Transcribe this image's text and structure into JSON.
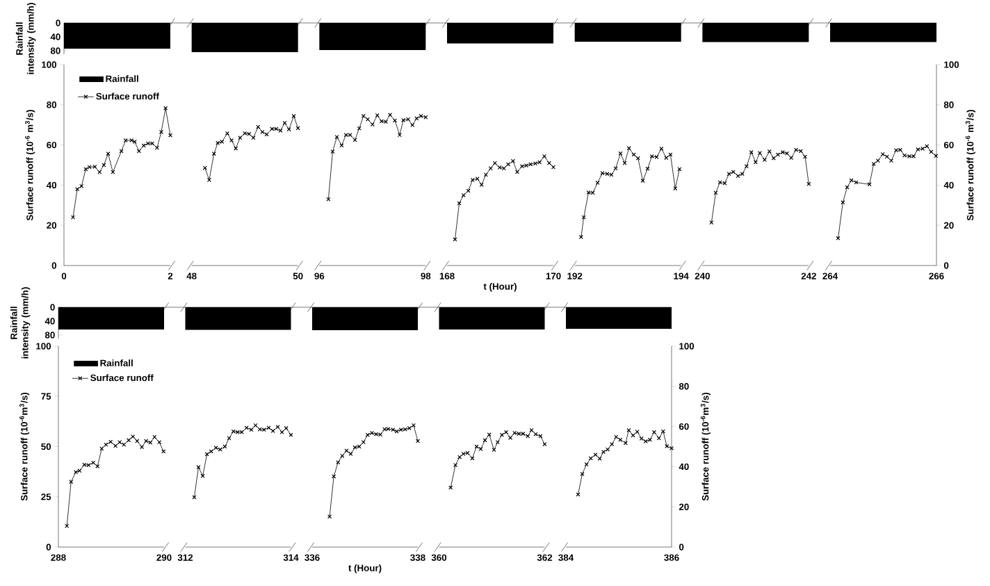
{
  "chart_data": [
    {
      "type": "bar",
      "categories": [
        null,
        null,
        null,
        null,
        null,
        null,
        null
      ],
      "series": [
        {
          "name": "Rainfall",
          "color": "#000000",
          "values": [
            74,
            84,
            78,
            59,
            54,
            55,
            55
          ]
        }
      ],
      "ylim": [
        90,
        0
      ],
      "yticks": [
        0,
        40,
        80
      ],
      "ylabel": "Rainfall intensity (mm/h)",
      "tick_labels": "y",
      "legend": "bottom"
    },
    {
      "type": "line",
      "x": [
        0.17,
        0.25,
        0.33,
        0.41,
        0.48,
        0.58,
        0.67,
        0.75,
        0.83,
        0.92,
        1.08,
        1.16,
        1.27,
        1.33,
        1.41,
        1.5,
        1.58,
        1.66,
        1.75,
        1.83,
        1.91,
        2.0
      ],
      "series": [
        {
          "name": "Surface runoff",
          "color": "#000000",
          "values": [
            24,
            38,
            39.5,
            48,
            49,
            49.2,
            46.5,
            50,
            55.7,
            46.5,
            57,
            62.3,
            62.3,
            61.6,
            57,
            59.7,
            60.8,
            60.8,
            58.6,
            66.5,
            78.3,
            64.8
          ]
        }
      ],
      "xlim": [
        0,
        2
      ],
      "xticks": [
        0,
        2
      ],
      "ylim": [
        0,
        100
      ],
      "yticks": [
        0,
        20,
        40,
        60,
        80,
        100
      ],
      "ylabel": "Surface runoff (10$^{-6}$ m$^{3}$/s)",
      "marker": "cross",
      "legend": "top left"
    },
    {
      "type": "line",
      "x": [
        48.25,
        48.33,
        48.42,
        48.49,
        48.57,
        48.67,
        48.75,
        48.83,
        48.91,
        49.0,
        49.08,
        49.16,
        49.25,
        49.33,
        49.41,
        49.51,
        49.59,
        49.67,
        49.75,
        49.83,
        49.92,
        50.0
      ],
      "series": [
        {
          "color": "#000000",
          "values": [
            48.6,
            42.6,
            55.7,
            61,
            61.6,
            65.8,
            62.3,
            58.3,
            63.6,
            65.8,
            65.5,
            63.6,
            69,
            66.5,
            65.3,
            68,
            68,
            67.2,
            71,
            67.8,
            74.4,
            68.4
          ]
        }
      ],
      "xlim": [
        48,
        50
      ],
      "xticks": [
        48,
        50
      ],
      "ylim": [
        0,
        100
      ],
      "tick_labels": "x",
      "marker": "cross"
    },
    {
      "type": "line",
      "x": [
        96.17,
        96.25,
        96.33,
        96.42,
        96.5,
        96.58,
        96.67,
        96.75,
        96.83,
        96.91,
        97.0,
        97.09,
        97.17,
        97.25,
        97.33,
        97.42,
        97.51,
        97.58,
        97.67,
        97.75,
        97.83,
        97.91,
        98.0
      ],
      "series": [
        {
          "color": "#000000",
          "values": [
            33,
            56.7,
            64,
            59.8,
            65,
            65,
            62.5,
            68.3,
            74.4,
            72.8,
            70.2,
            74.8,
            71.8,
            71.6,
            75,
            72.2,
            65,
            72.4,
            72.8,
            69.9,
            73.2,
            74.4,
            73.8
          ]
        }
      ],
      "xlim": [
        96,
        98
      ],
      "xticks": [
        96,
        98
      ],
      "ylim": [
        0,
        100
      ],
      "tick_labels": "x",
      "marker": "cross"
    },
    {
      "type": "line",
      "x": [
        168.15,
        168.23,
        168.31,
        168.4,
        168.48,
        168.57,
        168.65,
        168.73,
        168.82,
        168.9,
        168.99,
        169.07,
        169.15,
        169.24,
        169.32,
        169.41,
        169.49,
        169.57,
        169.66,
        169.74,
        169.83,
        169.92,
        170.0
      ],
      "series": [
        {
          "color": "#000000",
          "values": [
            13,
            31,
            35,
            37.2,
            42.6,
            43.2,
            40.2,
            45.2,
            48.4,
            51,
            48.8,
            48.4,
            50.4,
            52,
            46.6,
            49.4,
            49.8,
            50.4,
            50.8,
            51.4,
            54.4,
            51,
            49
          ]
        }
      ],
      "xlim": [
        168,
        170
      ],
      "xticks": [
        168,
        170
      ],
      "ylim": [
        0,
        100
      ],
      "tick_labels": "x",
      "xlabel": "t (Hour)",
      "marker": "cross"
    },
    {
      "type": "line",
      "x": [
        192.12,
        192.17,
        192.26,
        192.34,
        192.43,
        192.52,
        192.61,
        192.69,
        192.77,
        192.86,
        192.94,
        193.02,
        193.11,
        193.19,
        193.28,
        193.37,
        193.45,
        193.54,
        193.63,
        193.72,
        193.8,
        193.89,
        193.97
      ],
      "series": [
        {
          "color": "#000000",
          "values": [
            14.2,
            24,
            36.4,
            36.2,
            41.2,
            46,
            45.6,
            45.2,
            48.4,
            55.8,
            51,
            58.4,
            55.2,
            53.4,
            42.2,
            48.2,
            54.4,
            54,
            58.2,
            53.6,
            55.2,
            38.4,
            48
          ]
        }
      ],
      "xlim": [
        192,
        194
      ],
      "xticks": [
        192,
        194
      ],
      "ylim": [
        0,
        100
      ],
      "tick_labels": "x",
      "marker": "cross"
    },
    {
      "type": "line",
      "x": [
        240.17,
        240.25,
        240.33,
        240.42,
        240.5,
        240.58,
        240.67,
        240.75,
        240.83,
        240.92,
        241.0,
        241.08,
        241.17,
        241.26,
        241.34,
        241.42,
        241.51,
        241.59,
        241.67,
        241.76,
        241.85,
        241.93,
        242.0
      ],
      "series": [
        {
          "color": "#000000",
          "values": [
            21.4,
            36.2,
            41.4,
            41,
            45.6,
            46.6,
            44.6,
            45.6,
            49.4,
            56.4,
            51.4,
            56,
            52.6,
            56.8,
            53.4,
            55.2,
            56.4,
            55.8,
            53.6,
            57.6,
            57,
            54.2,
            40.6
          ]
        }
      ],
      "xlim": [
        240,
        242
      ],
      "xticks": [
        240,
        242
      ],
      "ylim": [
        0,
        100
      ],
      "tick_labels": "x",
      "marker": "cross"
    },
    {
      "type": "line",
      "x": [
        264.15,
        264.24,
        264.32,
        264.4,
        264.49,
        264.74,
        264.82,
        264.9,
        264.99,
        265.07,
        265.15,
        265.24,
        265.32,
        265.4,
        265.49,
        265.57,
        265.65,
        265.74,
        265.82,
        265.9,
        265.99
      ],
      "series": [
        {
          "color": "#000000",
          "axis": "y2",
          "values": [
            13.6,
            31.4,
            39,
            42.4,
            41.4,
            40.4,
            50.6,
            52.2,
            55.4,
            54.2,
            52.2,
            57.4,
            57.6,
            54.8,
            54.4,
            54.4,
            57.8,
            58.2,
            59.4,
            56.6,
            54.6
          ]
        }
      ],
      "xlim": [
        264,
        266
      ],
      "xticks": [
        264,
        266
      ],
      "y2lim": [
        0,
        100
      ],
      "y2ticks": [
        0,
        20,
        40,
        60,
        80,
        100
      ],
      "y2label": "Surface runoff (10$^{-6}$ m$^{3}$/s)",
      "marker": "cross"
    },
    {
      "type": "bar",
      "categories": [
        null,
        null,
        null,
        null,
        null
      ],
      "series": [
        {
          "name": "Rainfall",
          "color": "#000000",
          "values": [
            64,
            65,
            66,
            64,
            62
          ]
        }
      ],
      "ylim": [
        90,
        0
      ],
      "yticks": [
        0,
        40,
        80
      ],
      "ylabel": "Rainfall intensity (mm/h)",
      "tick_labels": "y",
      "legend": "bottom"
    },
    {
      "type": "line",
      "x": [
        288.16,
        288.24,
        288.33,
        288.4,
        288.49,
        288.57,
        288.66,
        288.74,
        288.82,
        288.9,
        288.99,
        289.08,
        289.16,
        289.24,
        289.33,
        289.41,
        289.49,
        289.58,
        289.66,
        289.74,
        289.82,
        289.91,
        289.99
      ],
      "series": [
        {
          "name": "Surface runoff",
          "color": "#000000",
          "values": [
            10.5,
            32.5,
            37.3,
            38,
            41,
            40.8,
            42,
            40.2,
            49,
            51,
            52.4,
            50.4,
            52.2,
            51,
            53.2,
            55,
            52.8,
            49.8,
            52.8,
            52,
            54.8,
            52.2,
            47.6
          ]
        }
      ],
      "xlim": [
        288,
        290
      ],
      "xticks": [
        288,
        290
      ],
      "ylim": [
        0,
        100
      ],
      "yticks": [
        0,
        25,
        50,
        75,
        100
      ],
      "ylabel": "Surface runoff (10$^{-6}$m$^{3}$/s)",
      "marker": "cross",
      "legend": "top left"
    },
    {
      "type": "line",
      "x": [
        312.17,
        312.25,
        312.33,
        312.41,
        312.49,
        312.58,
        312.66,
        312.75,
        312.83,
        312.91,
        312.99,
        313.07,
        313.16,
        313.25,
        313.33,
        313.41,
        313.49,
        313.58,
        313.66,
        313.75,
        313.83,
        313.91,
        314.0
      ],
      "series": [
        {
          "color": "#000000",
          "values": [
            24.8,
            39.8,
            35.4,
            46.2,
            47.6,
            49.4,
            48.6,
            50,
            54.2,
            57.6,
            57.2,
            57.2,
            59.4,
            58.4,
            60.6,
            58.6,
            58.4,
            59.4,
            57.8,
            59.8,
            57.2,
            59.2,
            55.8
          ]
        }
      ],
      "xlim": [
        312,
        314
      ],
      "xticks": [
        312,
        314
      ],
      "ylim": [
        0,
        100
      ],
      "tick_labels": "x",
      "marker": "cross"
    },
    {
      "type": "line",
      "x": [
        336.33,
        336.41,
        336.49,
        336.57,
        336.65,
        336.73,
        336.81,
        336.89,
        336.97,
        337.05,
        337.13,
        337.21,
        337.29,
        337.37,
        337.44,
        337.53,
        337.6,
        337.68,
        337.76,
        337.84,
        337.92,
        338.0
      ],
      "series": [
        {
          "color": "#000000",
          "values": [
            15.2,
            35.2,
            42.2,
            45.4,
            48,
            46.4,
            49.6,
            50,
            52.2,
            55.8,
            56.8,
            56.2,
            56,
            58.6,
            58.8,
            58.4,
            57.6,
            58.4,
            58.6,
            59.2,
            60.6,
            52.8
          ]
        }
      ],
      "xlim": [
        336,
        338
      ],
      "xticks": [
        336,
        338
      ],
      "ylim": [
        0,
        100
      ],
      "tick_labels": "x",
      "xlabel": "t (Hour)",
      "marker": "cross"
    },
    {
      "type": "line",
      "x": [
        360.22,
        360.31,
        360.39,
        360.46,
        360.54,
        360.63,
        360.71,
        360.79,
        360.87,
        360.95,
        361.04,
        361.11,
        361.19,
        361.27,
        361.35,
        361.43,
        361.51,
        361.59,
        361.68,
        361.75,
        361.83,
        361.92,
        362.0
      ],
      "series": [
        {
          "color": "#000000",
          "values": [
            29.6,
            40.8,
            44.8,
            46.4,
            46.8,
            44.2,
            50,
            48.8,
            53.2,
            56,
            48.4,
            52.2,
            55.8,
            57.2,
            54.4,
            56.8,
            56.4,
            56.4,
            55.2,
            58.2,
            56.2,
            55.2,
            51.2
          ]
        }
      ],
      "xlim": [
        360,
        362
      ],
      "xticks": [
        360,
        362
      ],
      "ylim": [
        0,
        100
      ],
      "tick_labels": "x",
      "marker": "cross"
    },
    {
      "type": "line",
      "x": [
        384.23,
        384.31,
        384.39,
        384.47,
        384.56,
        384.64,
        384.71,
        384.79,
        384.87,
        384.95,
        385.03,
        385.13,
        385.19,
        385.27,
        385.35,
        385.43,
        385.51,
        385.59,
        385.67,
        385.76,
        385.84,
        385.91,
        386.0
      ],
      "series": [
        {
          "color": "#000000",
          "axis": "y2",
          "values": [
            26.2,
            36.4,
            41.2,
            44.2,
            46,
            44,
            47.4,
            48.6,
            51.2,
            54.8,
            53.4,
            51.8,
            58.2,
            55.6,
            57.4,
            54,
            52.6,
            53.4,
            57.2,
            54.2,
            57.6,
            50.2,
            49.2
          ]
        }
      ],
      "xlim": [
        384,
        386
      ],
      "xticks": [
        384,
        386
      ],
      "y2lim": [
        0,
        100
      ],
      "y2ticks": [
        0,
        20,
        40,
        60,
        80,
        100
      ],
      "y2label": "Surface runoff (10$^{-6}$m$^{3}$/s)",
      "marker": "cross"
    }
  ]
}
